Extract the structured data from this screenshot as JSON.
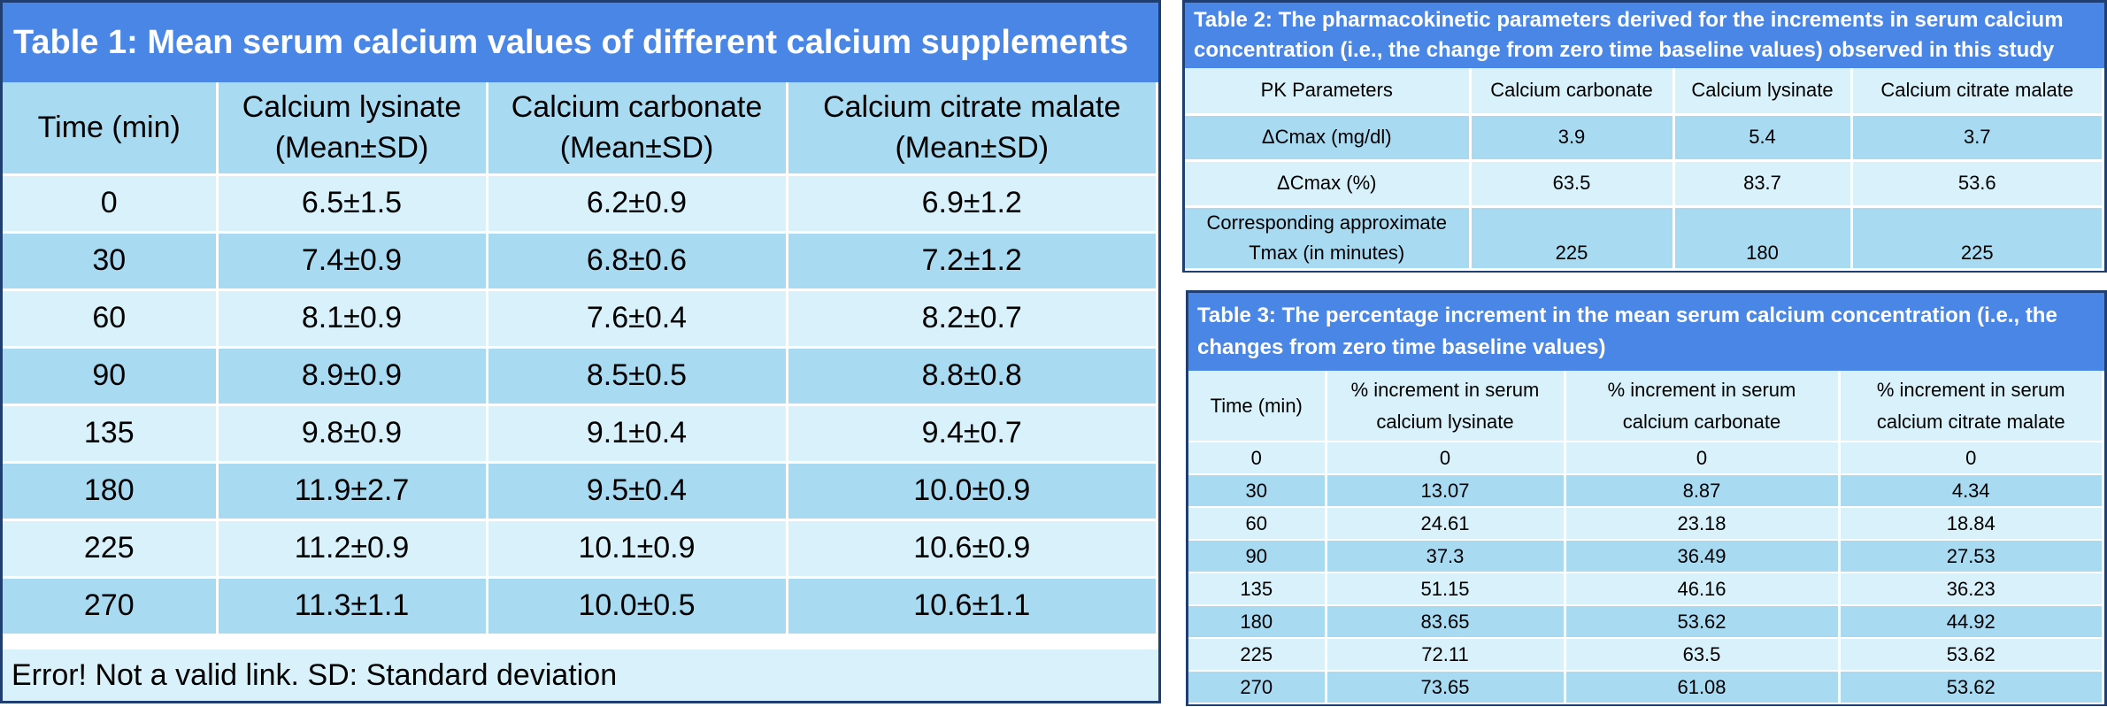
{
  "table1": {
    "caption": "Table 1: Mean serum calcium values of different calcium supplements",
    "headers": [
      {
        "line1": "Time (min)",
        "line2": ""
      },
      {
        "line1": "Calcium lysinate",
        "line2": "(Mean±SD)"
      },
      {
        "line1": "Calcium carbonate",
        "line2": "(Mean±SD)"
      },
      {
        "line1": "Calcium citrate malate",
        "line2": "(Mean±SD)"
      }
    ],
    "rows": [
      [
        "0",
        "6.5±1.5",
        "6.2±0.9",
        "6.9±1.2"
      ],
      [
        "30",
        "7.4±0.9",
        "6.8±0.6",
        "7.2±1.2"
      ],
      [
        "60",
        "8.1±0.9",
        "7.6±0.4",
        "8.2±0.7"
      ],
      [
        "90",
        "8.9±0.9",
        "8.5±0.5",
        "8.8±0.8"
      ],
      [
        "135",
        "9.8±0.9",
        "9.1±0.4",
        "9.4±0.7"
      ],
      [
        "180",
        "11.9±2.7",
        "9.5±0.4",
        "10.0±0.9"
      ],
      [
        "225",
        "11.2±0.9",
        "10.1±0.9",
        "10.6±0.9"
      ],
      [
        "270",
        "11.3±1.1",
        "10.0±0.5",
        "10.6±1.1"
      ]
    ],
    "footer": "Error! Not a valid link. SD: Standard deviation"
  },
  "table2": {
    "caption": "Table 2: The pharmacokinetic parameters derived for the increments in serum calcium concentration (i.e., the change from zero time baseline values) observed in this study",
    "headers": [
      "PK Parameters",
      "Calcium carbonate",
      "Calcium lysinate",
      "Calcium citrate malate"
    ],
    "rows": [
      [
        "ΔCmax (mg/dl)",
        "3.9",
        "5.4",
        "3.7"
      ],
      [
        "ΔCmax (%)",
        "63.5",
        "83.7",
        "53.6"
      ],
      [
        "Corresponding approximate Tmax (in minutes)",
        "225",
        "180",
        "225"
      ]
    ]
  },
  "table3": {
    "caption": "Table 3: The percentage increment in the mean serum calcium concentration (i.e., the changes from zero time baseline values)",
    "headers": [
      {
        "line1": "Time (min)",
        "line2": ""
      },
      {
        "line1": "% increment in serum",
        "line2": "calcium lysinate"
      },
      {
        "line1": "% increment in serum",
        "line2": "calcium carbonate"
      },
      {
        "line1": "% increment in serum",
        "line2": "calcium citrate malate"
      }
    ],
    "rows": [
      [
        "0",
        "0",
        "0",
        "0"
      ],
      [
        "30",
        "13.07",
        "8.87",
        "4.34"
      ],
      [
        "60",
        "24.61",
        "23.18",
        "18.84"
      ],
      [
        "90",
        "37.3",
        "36.49",
        "27.53"
      ],
      [
        "135",
        "51.15",
        "46.16",
        "36.23"
      ],
      [
        "180",
        "83.65",
        "53.62",
        "44.92"
      ],
      [
        "225",
        "72.11",
        "63.5",
        "53.62"
      ],
      [
        "270",
        "73.65",
        "61.08",
        "53.62"
      ]
    ]
  }
}
